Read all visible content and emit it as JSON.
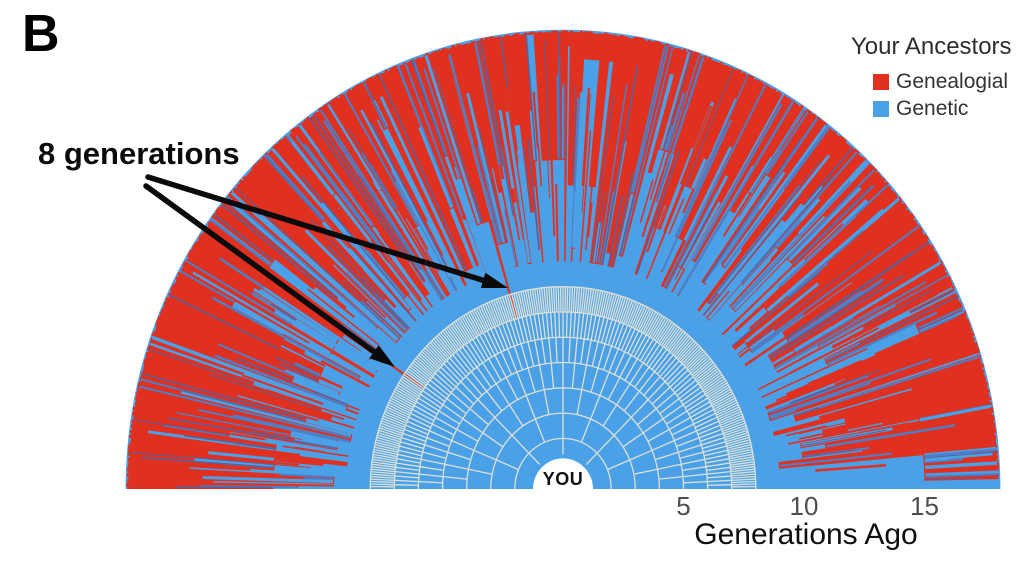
{
  "figure": {
    "panel_label": "B",
    "annotation": {
      "text": "8 generations"
    },
    "center_label": "YOU",
    "legend": {
      "title": "Your Ancestors",
      "items": [
        {
          "label": "Genealogial",
          "color": "#e0301f"
        },
        {
          "label": "Genetic",
          "color": "#4ba1e8"
        }
      ]
    },
    "x_axis": {
      "label": "Generations Ago",
      "ticks": [
        5,
        10,
        15
      ]
    }
  },
  "chart_data": {
    "type": "fan-pedigree-half-sunburst",
    "title": "",
    "legend_position": "top-right",
    "legend_title": "Your Ancestors",
    "series": [
      {
        "name": "Genealogial",
        "color": "#e0301f"
      },
      {
        "name": "Genetic",
        "color": "#4ba1e8"
      }
    ],
    "generations_shown": 18,
    "pedigree_grid_generations": 8,
    "annotation_text": "8 generations",
    "annotation_points_to_generation": 8,
    "center_label": "YOU",
    "xlabel": "Generations Ago",
    "x_ticks_generations": [
      5,
      10,
      15
    ],
    "approx_fraction_genetic_by_generation": {
      "1": 1.0,
      "2": 1.0,
      "3": 1.0,
      "4": 1.0,
      "5": 1.0,
      "6": 1.0,
      "7": 1.0,
      "8": 0.99,
      "9": 0.78,
      "10": 0.62,
      "11": 0.48,
      "12": 0.36,
      "13": 0.26,
      "14": 0.18,
      "15": 0.12,
      "16": 0.08,
      "17": 0.05,
      "18": 0.035
    },
    "colors": {
      "genealogical_red": "#e0301f",
      "genetic_blue": "#4ba1e8",
      "grid_line": "#dce0d6",
      "genetic_streak_dark": "#55639f",
      "background": "#ffffff"
    }
  }
}
